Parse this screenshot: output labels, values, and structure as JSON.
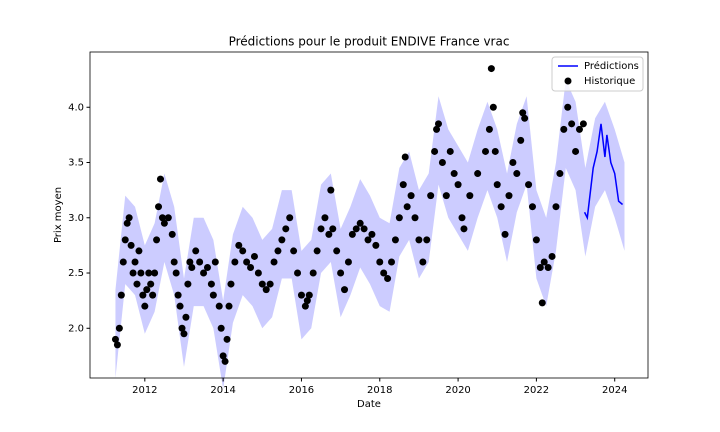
{
  "chart_data": {
    "type": "line",
    "title": "Prédictions pour le produit ENDIVE France vrac",
    "xlabel": "Date",
    "ylabel": "Prix moyen",
    "xlim": [
      2010.6,
      2024.85
    ],
    "ylim": [
      1.55,
      4.5
    ],
    "xticks": [
      2012,
      2014,
      2016,
      2018,
      2020,
      2022,
      2024
    ],
    "yticks": [
      {
        "value": 2,
        "label": "2.0"
      },
      {
        "value": 2.5,
        "label": "2.5"
      },
      {
        "value": 3,
        "label": "3.0"
      },
      {
        "value": 3.5,
        "label": "3.5"
      },
      {
        "value": 4,
        "label": "4.0"
      }
    ],
    "grid": false,
    "legend": "upper right",
    "band": {
      "color": "#0000ff",
      "x": [
        2011.25,
        2011.5,
        2011.75,
        2012,
        2012.25,
        2012.5,
        2012.75,
        2013,
        2013.25,
        2013.5,
        2013.75,
        2014,
        2014.25,
        2014.5,
        2014.75,
        2015,
        2015.25,
        2015.5,
        2015.75,
        2016,
        2016.25,
        2016.5,
        2016.75,
        2017,
        2017.25,
        2017.5,
        2017.75,
        2018,
        2018.25,
        2018.5,
        2018.75,
        2019,
        2019.25,
        2019.5,
        2019.75,
        2020,
        2020.25,
        2020.5,
        2020.75,
        2021,
        2021.25,
        2021.5,
        2021.75,
        2022,
        2022.25,
        2022.5,
        2022.75,
        2023,
        2023.25,
        2023.5,
        2023.75,
        2024,
        2024.25
      ],
      "lower": [
        1.55,
        2.4,
        2.3,
        1.95,
        2.15,
        2.6,
        2.3,
        1.65,
        2.2,
        2.2,
        2.0,
        1.45,
        2.05,
        2.3,
        2.2,
        2.0,
        2.1,
        2.45,
        2.45,
        1.9,
        2.0,
        2.5,
        2.6,
        2.1,
        2.3,
        2.55,
        2.4,
        2.2,
        2.15,
        2.65,
        2.8,
        2.45,
        2.6,
        3.3,
        3.0,
        2.85,
        2.7,
        3.0,
        3.25,
        3.0,
        2.6,
        3.05,
        3.3,
        2.45,
        2.2,
        2.7,
        3.45,
        3.25,
        2.65,
        3.1,
        3.25,
        3.0,
        2.7
      ],
      "upper": [
        2.35,
        3.2,
        3.1,
        2.75,
        2.95,
        3.4,
        3.1,
        2.45,
        3.0,
        3.0,
        2.8,
        2.25,
        2.85,
        3.1,
        3.0,
        2.8,
        2.9,
        3.25,
        3.25,
        2.7,
        2.8,
        3.3,
        3.4,
        2.9,
        3.1,
        3.35,
        3.2,
        3.0,
        2.95,
        3.45,
        3.6,
        3.25,
        3.4,
        4.1,
        3.8,
        3.65,
        3.5,
        3.8,
        4.05,
        3.8,
        3.4,
        3.85,
        4.1,
        3.25,
        3.0,
        3.5,
        4.25,
        4.05,
        3.45,
        3.9,
        4.05,
        3.8,
        3.5
      ]
    },
    "series": [
      {
        "name": "Prédictions",
        "type": "line",
        "color": "#0000ff",
        "x": [
          2023.23,
          2023.3,
          2023.4,
          2023.45,
          2023.55,
          2023.65,
          2023.75,
          2023.8,
          2023.9,
          2024.0,
          2024.1,
          2024.2
        ],
        "values": [
          3.05,
          3.0,
          3.3,
          3.45,
          3.6,
          3.85,
          3.55,
          3.75,
          3.5,
          3.4,
          3.15,
          3.12
        ]
      },
      {
        "name": "Historique",
        "type": "scatter",
        "color": "#000000",
        "x": [
          2011.25,
          2011.3,
          2011.35,
          2011.4,
          2011.45,
          2011.5,
          2011.55,
          2011.6,
          2011.65,
          2011.7,
          2011.75,
          2011.8,
          2011.85,
          2011.9,
          2011.95,
          2012.0,
          2012.05,
          2012.1,
          2012.15,
          2012.2,
          2012.25,
          2012.3,
          2012.35,
          2012.4,
          2012.45,
          2012.5,
          2012.6,
          2012.7,
          2012.75,
          2012.8,
          2012.85,
          2012.9,
          2012.95,
          2013.0,
          2013.05,
          2013.1,
          2013.15,
          2013.2,
          2013.3,
          2013.4,
          2013.5,
          2013.6,
          2013.7,
          2013.75,
          2013.8,
          2013.9,
          2013.95,
          2014.0,
          2014.05,
          2014.1,
          2014.15,
          2014.2,
          2014.3,
          2014.4,
          2014.5,
          2014.6,
          2014.7,
          2014.8,
          2014.9,
          2015.0,
          2015.1,
          2015.2,
          2015.3,
          2015.4,
          2015.5,
          2015.6,
          2015.7,
          2015.8,
          2015.9,
          2016.0,
          2016.1,
          2016.15,
          2016.2,
          2016.3,
          2016.4,
          2016.5,
          2016.6,
          2016.7,
          2016.75,
          2016.8,
          2016.9,
          2017.0,
          2017.1,
          2017.2,
          2017.3,
          2017.4,
          2017.5,
          2017.6,
          2017.7,
          2017.8,
          2017.9,
          2018.0,
          2018.1,
          2018.2,
          2018.3,
          2018.4,
          2018.5,
          2018.6,
          2018.65,
          2018.7,
          2018.8,
          2018.9,
          2019.0,
          2019.1,
          2019.2,
          2019.3,
          2019.4,
          2019.45,
          2019.5,
          2019.6,
          2019.7,
          2019.8,
          2019.9,
          2020.0,
          2020.1,
          2020.15,
          2020.3,
          2020.5,
          2020.7,
          2020.8,
          2020.85,
          2020.9,
          2020.95,
          2021.0,
          2021.1,
          2021.2,
          2021.3,
          2021.4,
          2021.5,
          2021.6,
          2021.65,
          2021.7,
          2021.8,
          2021.9,
          2022.0,
          2022.1,
          2022.15,
          2022.2,
          2022.3,
          2022.4,
          2022.5,
          2022.6,
          2022.7,
          2022.8,
          2022.9,
          2023.0,
          2023.1,
          2023.2
        ],
        "values": [
          1.9,
          1.85,
          2.0,
          2.3,
          2.6,
          2.8,
          2.95,
          3.0,
          2.75,
          2.5,
          2.6,
          2.4,
          2.7,
          2.5,
          2.3,
          2.2,
          2.35,
          2.5,
          2.4,
          2.3,
          2.5,
          2.8,
          3.1,
          3.35,
          3.0,
          2.95,
          3.0,
          2.85,
          2.6,
          2.5,
          2.3,
          2.2,
          2.0,
          1.95,
          2.1,
          2.4,
          2.6,
          2.55,
          2.7,
          2.6,
          2.5,
          2.55,
          2.4,
          2.3,
          2.6,
          2.2,
          2.0,
          1.75,
          1.7,
          1.9,
          2.2,
          2.4,
          2.6,
          2.75,
          2.7,
          2.6,
          2.55,
          2.65,
          2.5,
          2.4,
          2.35,
          2.4,
          2.6,
          2.7,
          2.8,
          2.9,
          3.0,
          2.7,
          2.5,
          2.3,
          2.2,
          2.25,
          2.3,
          2.5,
          2.7,
          2.9,
          3.0,
          2.85,
          3.25,
          2.9,
          2.7,
          2.5,
          2.35,
          2.6,
          2.85,
          2.9,
          2.95,
          2.9,
          2.8,
          2.85,
          2.75,
          2.6,
          2.5,
          2.45,
          2.6,
          2.8,
          3.0,
          3.3,
          3.55,
          3.1,
          3.2,
          3.0,
          2.8,
          2.6,
          2.8,
          3.2,
          3.6,
          3.8,
          3.85,
          3.5,
          3.2,
          3.6,
          3.4,
          3.3,
          3.0,
          2.9,
          3.2,
          3.4,
          3.6,
          3.8,
          4.35,
          4.0,
          3.6,
          3.3,
          3.1,
          2.85,
          3.2,
          3.5,
          3.4,
          3.7,
          3.95,
          3.9,
          3.3,
          3.1,
          2.8,
          2.55,
          2.23,
          2.6,
          2.55,
          2.65,
          3.1,
          3.4,
          3.8,
          4.0,
          3.85,
          3.6,
          3.8,
          3.85
        ]
      }
    ]
  }
}
